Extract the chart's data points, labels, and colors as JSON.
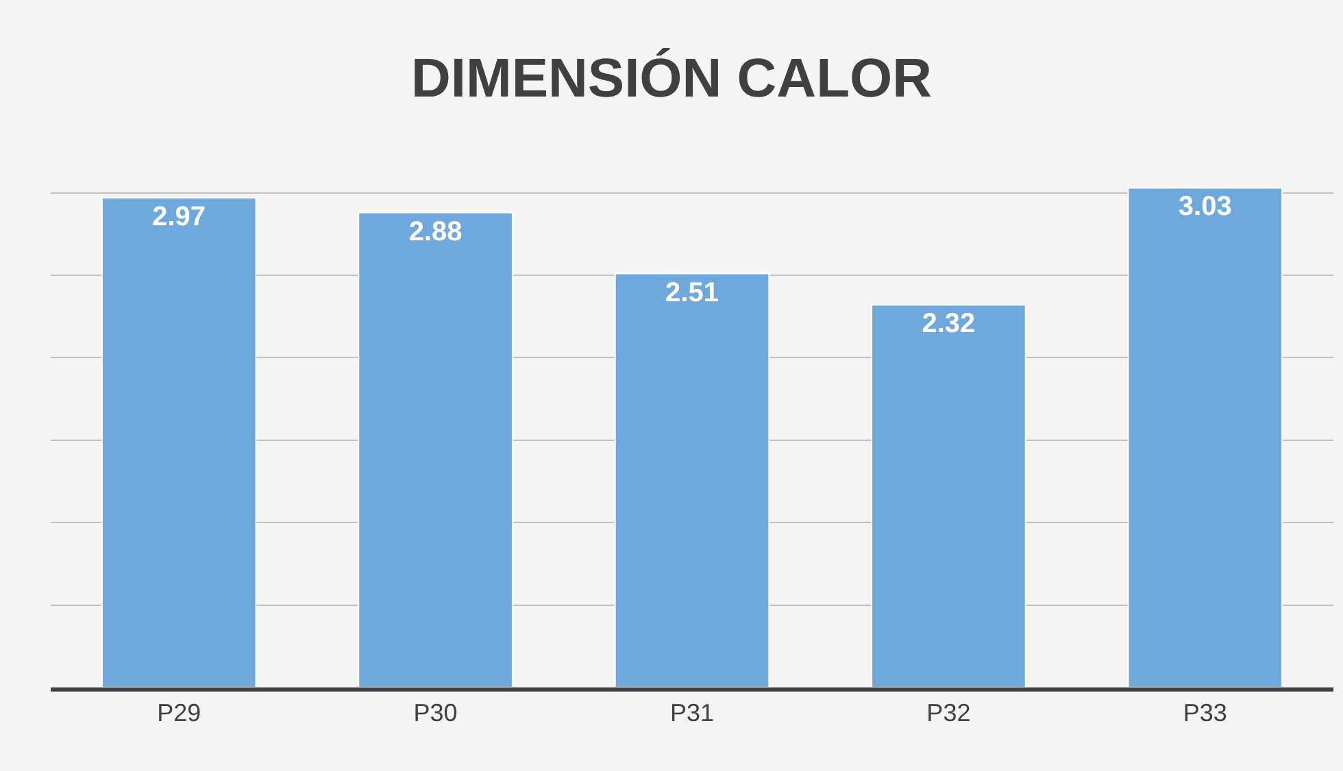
{
  "chart_data": {
    "type": "bar",
    "title": "DIMENSIÓN CALOR",
    "categories": [
      "P29",
      "P30",
      "P31",
      "P32",
      "P33"
    ],
    "values": [
      2.97,
      2.88,
      2.51,
      2.32,
      3.03
    ],
    "color": "#6fa8dc",
    "tick_labels": "x",
    "grid": "y",
    "data_labels": true,
    "legend": false
  }
}
